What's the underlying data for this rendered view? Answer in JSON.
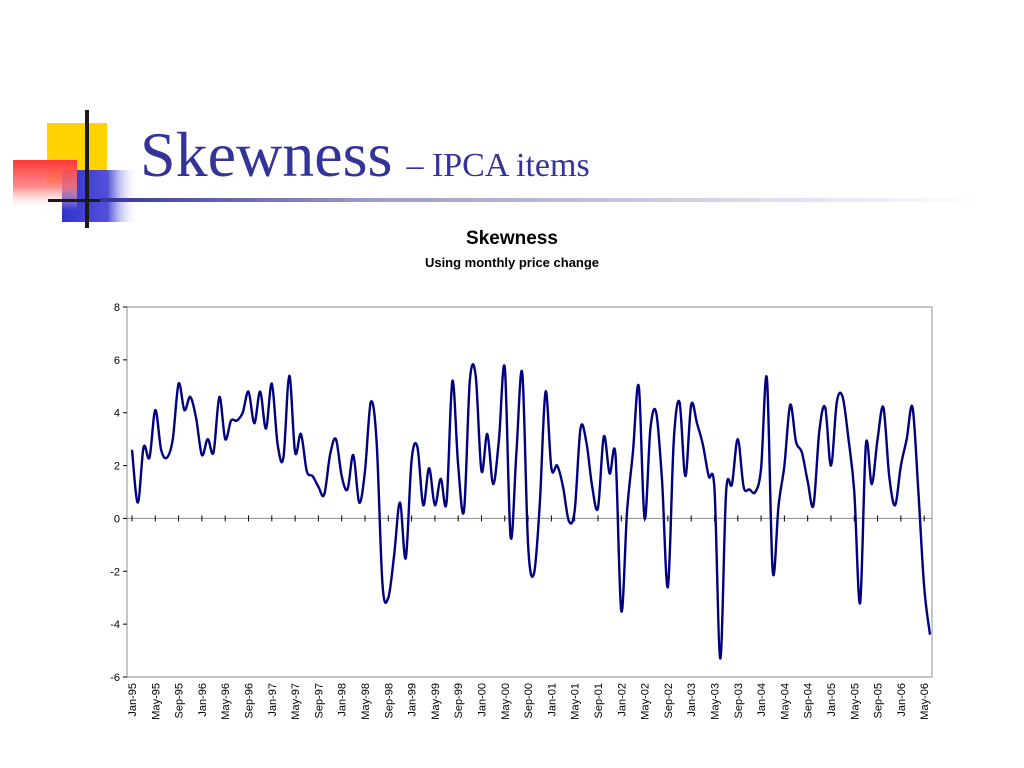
{
  "slide": {
    "title": "Skewness",
    "subtitle": "– IPCA items"
  },
  "colors": {
    "title": "#333399",
    "line": "#000080",
    "deco_yellow": "#ffd700",
    "deco_red": "#ff4040",
    "deco_blue": "#3333cc"
  },
  "chart_data": {
    "type": "line",
    "title": "Skewness",
    "subtitle": "Using monthly price change",
    "xlabel": "",
    "ylabel": "",
    "ylim": [
      -6,
      8
    ],
    "yticks": [
      -6,
      -4,
      -2,
      0,
      2,
      4,
      6,
      8
    ],
    "grid": false,
    "legend": "none",
    "xtick_labels": [
      "Jan-95",
      "May-95",
      "Sep-95",
      "Jan-96",
      "May-96",
      "Sep-96",
      "Jan-97",
      "May-97",
      "Sep-97",
      "Jan-98",
      "May-98",
      "Sep-98",
      "Jan-99",
      "May-99",
      "Sep-99",
      "Jan-00",
      "May-00",
      "Sep-00",
      "Jan-01",
      "May-01",
      "Sep-01",
      "Jan-02",
      "May-02",
      "Sep-02",
      "Jan-03",
      "May-03",
      "Sep-03",
      "Jan-04",
      "May-04",
      "Sep-04",
      "Jan-05",
      "May-05",
      "Sep-05",
      "Jan-06",
      "May-06"
    ],
    "series": [
      {
        "values": [
          2.6,
          0.6,
          2.7,
          2.3,
          4.1,
          2.6,
          2.3,
          3.0,
          5.1,
          4.1,
          4.6,
          3.8,
          2.4,
          3.0,
          2.5,
          4.6,
          3.0,
          3.7,
          3.7,
          4.0,
          4.8,
          3.6,
          4.8,
          3.4,
          5.1,
          2.8,
          2.3,
          5.4,
          2.5,
          3.2,
          1.8,
          1.6,
          1.2,
          0.9,
          2.4,
          3.0,
          1.6,
          1.1,
          2.4,
          0.6,
          1.8,
          4.4,
          2.9,
          -2.5,
          -3.0,
          -1.4,
          0.6,
          -1.5,
          2.2,
          2.7,
          0.5,
          1.9,
          0.5,
          1.5,
          0.6,
          5.2,
          2.0,
          0.3,
          5.2,
          5.4,
          1.8,
          3.2,
          1.3,
          3.0,
          5.7,
          -0.7,
          2.5,
          5.5,
          -1.0,
          -2.1,
          0.5,
          4.8,
          1.9,
          2.0,
          1.2,
          -0.1,
          0.3,
          3.4,
          2.9,
          1.2,
          0.4,
          3.1,
          1.7,
          2.4,
          -3.5,
          0.3,
          2.5,
          5.0,
          0.0,
          3.4,
          4.0,
          1.4,
          -2.6,
          2.9,
          4.4,
          1.6,
          4.3,
          3.6,
          2.8,
          1.6,
          1.1,
          -5.3,
          1.0,
          1.3,
          3.0,
          1.2,
          1.1,
          1.0,
          1.9,
          5.3,
          -2.0,
          0.5,
          2.0,
          4.3,
          2.9,
          2.5,
          1.4,
          0.5,
          3.3,
          4.2,
          2.0,
          4.4,
          4.6,
          3.0,
          1.0,
          -3.2,
          2.8,
          1.3,
          3.0,
          4.2,
          1.6,
          0.5,
          2.0,
          3.0,
          4.2,
          1.0,
          -2.6,
          -4.4
        ]
      }
    ]
  }
}
